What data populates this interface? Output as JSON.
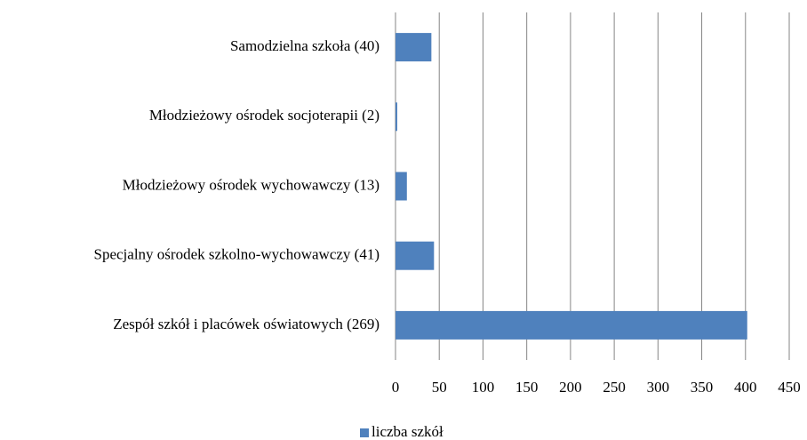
{
  "chart_data": {
    "type": "barh",
    "categories": [
      "Samodzielna szkoła (40)",
      "Młodzieżowy ośrodek socjoterapii (2)",
      "Młodzieżowy ośrodek wychowawczy (13)",
      "Specjalny ośrodek szkolno-wychowawczy (41)",
      "Zespół szkół i placówek oświatowych (269)"
    ],
    "series": [
      {
        "name": "liczba szkół",
        "color": "#4f81bd",
        "values": [
          41,
          2,
          13,
          44,
          402
        ]
      }
    ],
    "xlim": [
      0,
      450
    ],
    "xticks": [
      0,
      50,
      100,
      150,
      200,
      250,
      300,
      350,
      400,
      450
    ],
    "grid": true,
    "legend": "bottom"
  }
}
